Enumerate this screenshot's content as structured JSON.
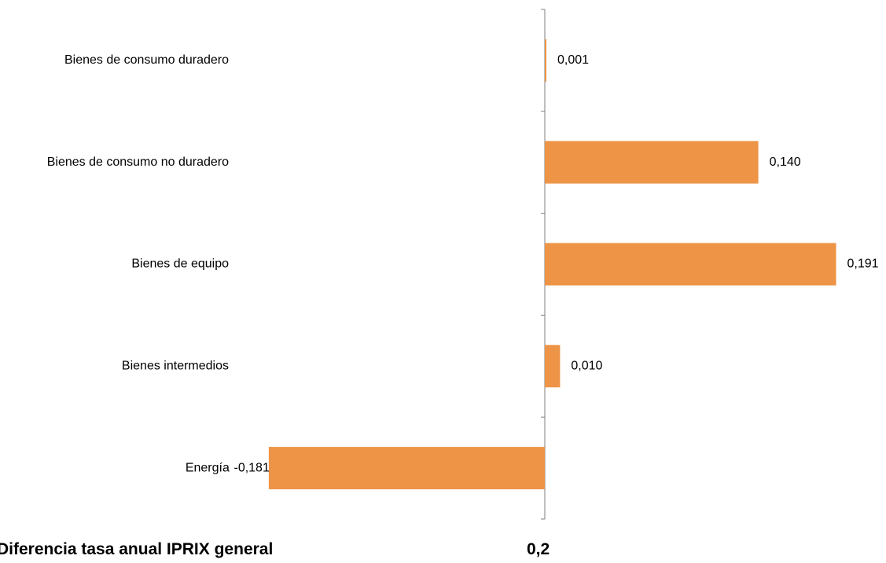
{
  "chart_data": {
    "type": "bar",
    "orientation": "horizontal",
    "categories": [
      "Bienes de consumo duradero",
      "Bienes de consumo no duradero",
      "Bienes de equipo",
      "Bienes intermedios",
      "Energía"
    ],
    "values": [
      0.001,
      0.14,
      0.191,
      0.01,
      -0.181
    ],
    "value_labels": [
      "0,001",
      "0,140",
      "0,191",
      "0,010",
      "-0,181"
    ],
    "bar_color": "#ED9447",
    "axis_color": "#7f7f7f",
    "title": "",
    "xlabel": "",
    "ylabel": "",
    "grid": false,
    "legend": "none"
  },
  "footer": {
    "label": "Diferencia tasa anual IPRIX general",
    "value": "0,2"
  }
}
